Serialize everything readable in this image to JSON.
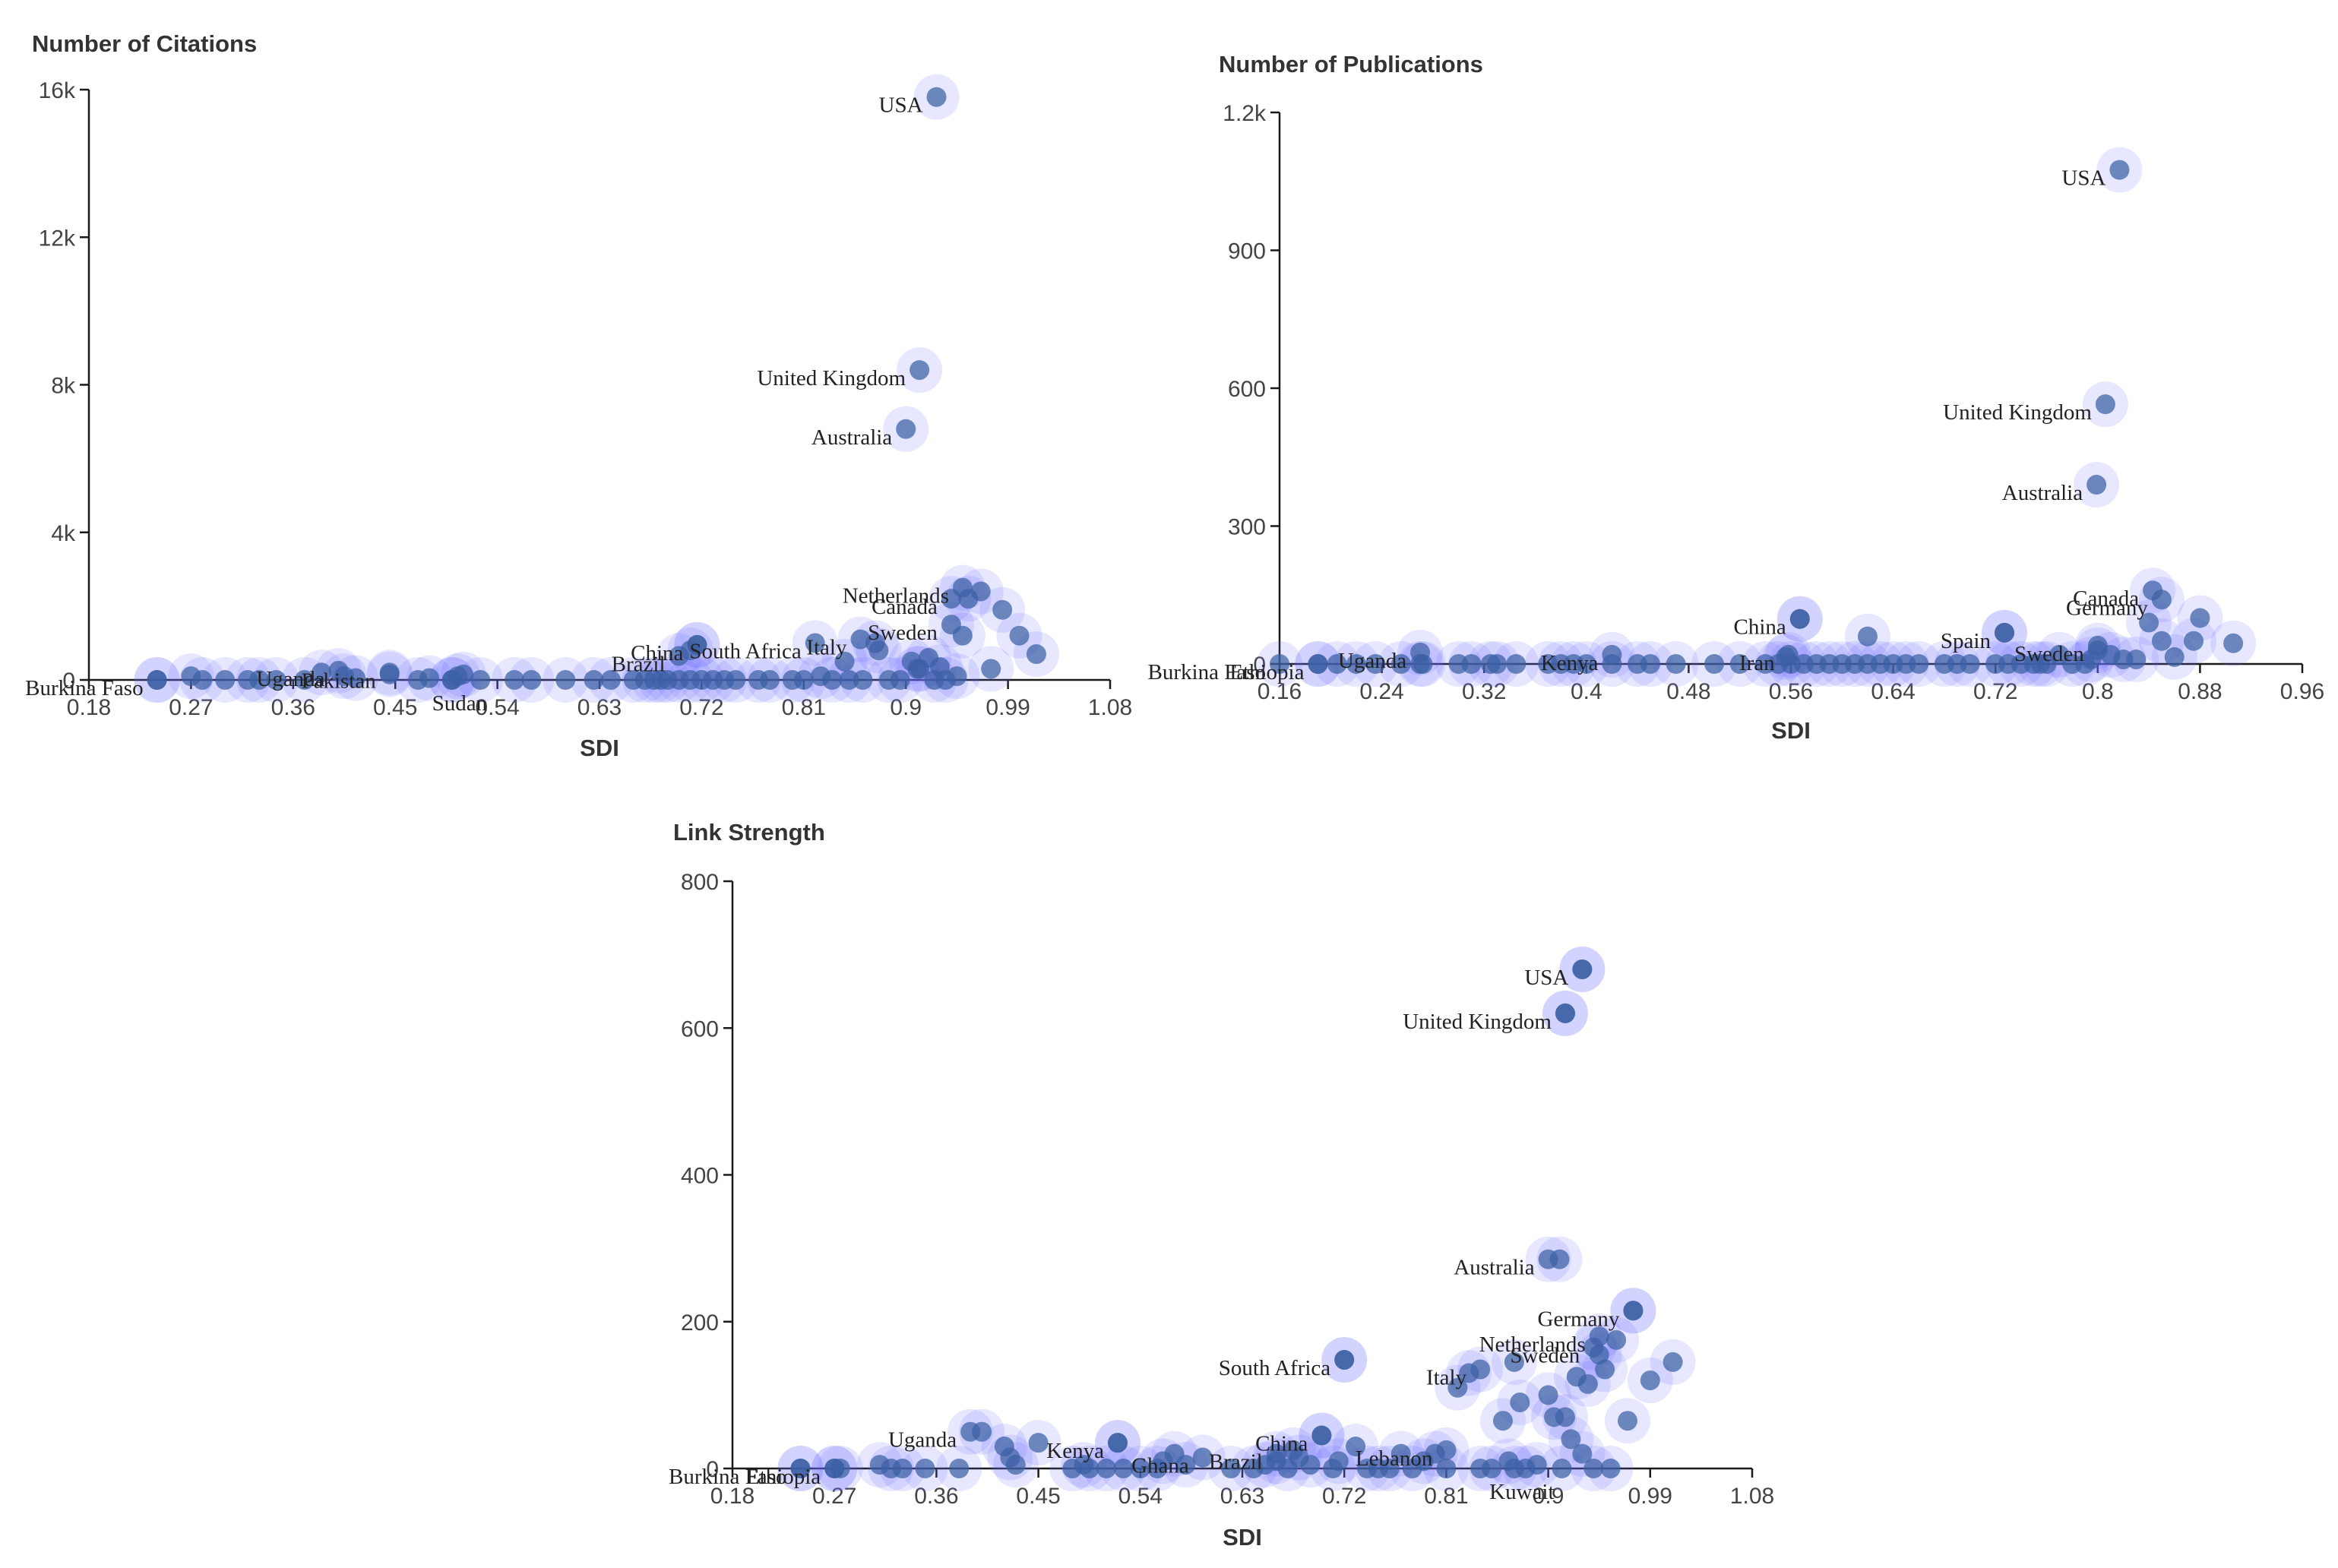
{
  "chart_data": [
    {
      "type": "scatter",
      "title": "Number of Citations",
      "xlabel": "SDI",
      "ylabel": "Number of Citations",
      "xlim": [
        0.18,
        1.08
      ],
      "ylim": [
        0,
        16000
      ],
      "xticks": [
        "0.18",
        "0.27",
        "0.36",
        "0.45",
        "0.54",
        "0.63",
        "0.72",
        "0.81",
        "0.9",
        "0.99",
        "1.08"
      ],
      "yticks": [
        {
          "value": 0,
          "label": "0"
        },
        {
          "value": 4000,
          "label": "4k"
        },
        {
          "value": 8000,
          "label": "8k"
        },
        {
          "value": 12000,
          "label": "12k"
        },
        {
          "value": 16000,
          "label": "16k"
        }
      ],
      "labeled_points": [
        {
          "label": "USA",
          "x": 0.927,
          "y": 15800
        },
        {
          "label": "United Kingdom",
          "x": 0.912,
          "y": 8400
        },
        {
          "label": "Australia",
          "x": 0.9,
          "y": 6800
        },
        {
          "label": "Netherlands",
          "x": 0.95,
          "y": 2500
        },
        {
          "label": "Canada",
          "x": 0.94,
          "y": 2200
        },
        {
          "label": "Sweden",
          "x": 0.94,
          "y": 1500
        },
        {
          "label": "Italy",
          "x": 0.86,
          "y": 1100
        },
        {
          "label": "South Africa",
          "x": 0.82,
          "y": 1000
        },
        {
          "label": "China",
          "x": 0.716,
          "y": 950
        },
        {
          "label": "Brazil",
          "x": 0.7,
          "y": 650
        },
        {
          "label": "Pakistan",
          "x": 0.445,
          "y": 200
        },
        {
          "label": "Uganda",
          "x": 0.4,
          "y": 250
        },
        {
          "label": "Burkina Faso",
          "x": 0.24,
          "y": 0
        },
        {
          "label": "Sudan",
          "x": 0.5,
          "y": 0
        }
      ],
      "points": [
        [
          0.24,
          0
        ],
        [
          0.27,
          100
        ],
        [
          0.28,
          0
        ],
        [
          0.3,
          0
        ],
        [
          0.32,
          0
        ],
        [
          0.33,
          0
        ],
        [
          0.345,
          0
        ],
        [
          0.37,
          0
        ],
        [
          0.385,
          200
        ],
        [
          0.405,
          100
        ],
        [
          0.415,
          50
        ],
        [
          0.445,
          150
        ],
        [
          0.47,
          0
        ],
        [
          0.48,
          50
        ],
        [
          0.5,
          0
        ],
        [
          0.505,
          100
        ],
        [
          0.51,
          150
        ],
        [
          0.525,
          0
        ],
        [
          0.555,
          0
        ],
        [
          0.57,
          0
        ],
        [
          0.6,
          0
        ],
        [
          0.625,
          0
        ],
        [
          0.64,
          0
        ],
        [
          0.66,
          0
        ],
        [
          0.67,
          0
        ],
        [
          0.678,
          0
        ],
        [
          0.684,
          0
        ],
        [
          0.69,
          0
        ],
        [
          0.7,
          0
        ],
        [
          0.71,
          0
        ],
        [
          0.72,
          0
        ],
        [
          0.73,
          0
        ],
        [
          0.74,
          0
        ],
        [
          0.75,
          0
        ],
        [
          0.77,
          0
        ],
        [
          0.78,
          0
        ],
        [
          0.8,
          0
        ],
        [
          0.81,
          0
        ],
        [
          0.825,
          100
        ],
        [
          0.835,
          0
        ],
        [
          0.846,
          500
        ],
        [
          0.85,
          0
        ],
        [
          0.862,
          0
        ],
        [
          0.873,
          1000
        ],
        [
          0.876,
          800
        ],
        [
          0.885,
          0
        ],
        [
          0.895,
          0
        ],
        [
          0.905,
          500
        ],
        [
          0.91,
          300
        ],
        [
          0.912,
          300
        ],
        [
          0.92,
          600
        ],
        [
          0.925,
          0
        ],
        [
          0.93,
          350
        ],
        [
          0.935,
          0
        ],
        [
          0.945,
          100
        ],
        [
          0.95,
          1200
        ],
        [
          0.955,
          2200
        ],
        [
          0.966,
          2400
        ],
        [
          0.975,
          300
        ],
        [
          0.985,
          1900
        ],
        [
          1.0,
          1200
        ],
        [
          1.015,
          700
        ],
        [
          0.716,
          950
        ],
        [
          0.71,
          800
        ]
      ]
    },
    {
      "type": "scatter",
      "title": "Number of Publications",
      "xlabel": "SDI",
      "ylabel": "Number of Publications",
      "xlim": [
        0.16,
        0.96
      ],
      "ylim": [
        0,
        1200
      ],
      "xticks": [
        "0.16",
        "0.24",
        "0.32",
        "0.4",
        "0.48",
        "0.56",
        "0.64",
        "0.72",
        "0.8",
        "0.88",
        "0.96"
      ],
      "yticks": [
        {
          "value": 0,
          "label": "0"
        },
        {
          "value": 300,
          "label": "300"
        },
        {
          "value": 600,
          "label": "600"
        },
        {
          "value": 900,
          "label": "900"
        },
        {
          "value": 1200,
          "label": "1.2k"
        }
      ],
      "labeled_points": [
        {
          "label": "USA",
          "x": 0.817,
          "y": 1075
        },
        {
          "label": "United Kingdom",
          "x": 0.806,
          "y": 565
        },
        {
          "label": "Australia",
          "x": 0.799,
          "y": 390
        },
        {
          "label": "Canada",
          "x": 0.843,
          "y": 160
        },
        {
          "label": "Germany",
          "x": 0.85,
          "y": 140
        },
        {
          "label": "Sweden",
          "x": 0.8,
          "y": 40
        },
        {
          "label": "Spain",
          "x": 0.727,
          "y": 68
        },
        {
          "label": "China",
          "x": 0.567,
          "y": 98
        },
        {
          "label": "Iran",
          "x": 0.558,
          "y": 20
        },
        {
          "label": "Kenya",
          "x": 0.42,
          "y": 20
        },
        {
          "label": "Uganda",
          "x": 0.27,
          "y": 25
        },
        {
          "label": "Ethiopia",
          "x": 0.19,
          "y": 0
        },
        {
          "label": "Burkina Faso",
          "x": 0.16,
          "y": 0
        }
      ],
      "points": [
        [
          0.19,
          0
        ],
        [
          0.205,
          0
        ],
        [
          0.22,
          0
        ],
        [
          0.235,
          0
        ],
        [
          0.255,
          0
        ],
        [
          0.27,
          0
        ],
        [
          0.272,
          0
        ],
        [
          0.3,
          0
        ],
        [
          0.31,
          0
        ],
        [
          0.325,
          0
        ],
        [
          0.33,
          0
        ],
        [
          0.345,
          0
        ],
        [
          0.37,
          0
        ],
        [
          0.38,
          0
        ],
        [
          0.39,
          0
        ],
        [
          0.4,
          0
        ],
        [
          0.42,
          0
        ],
        [
          0.44,
          0
        ],
        [
          0.45,
          0
        ],
        [
          0.47,
          0
        ],
        [
          0.5,
          0
        ],
        [
          0.52,
          0
        ],
        [
          0.54,
          0
        ],
        [
          0.55,
          0
        ],
        [
          0.556,
          15
        ],
        [
          0.56,
          0
        ],
        [
          0.57,
          0
        ],
        [
          0.58,
          0
        ],
        [
          0.59,
          0
        ],
        [
          0.6,
          0
        ],
        [
          0.61,
          0
        ],
        [
          0.62,
          0
        ],
        [
          0.63,
          0
        ],
        [
          0.64,
          0
        ],
        [
          0.65,
          0
        ],
        [
          0.66,
          0
        ],
        [
          0.68,
          0
        ],
        [
          0.69,
          0
        ],
        [
          0.7,
          0
        ],
        [
          0.72,
          0
        ],
        [
          0.73,
          0
        ],
        [
          0.74,
          0
        ],
        [
          0.75,
          0
        ],
        [
          0.755,
          0
        ],
        [
          0.76,
          0
        ],
        [
          0.77,
          20
        ],
        [
          0.78,
          0
        ],
        [
          0.79,
          0
        ],
        [
          0.795,
          10
        ],
        [
          0.8,
          30
        ],
        [
          0.81,
          20
        ],
        [
          0.82,
          10
        ],
        [
          0.83,
          10
        ],
        [
          0.84,
          90
        ],
        [
          0.85,
          50
        ],
        [
          0.86,
          15
        ],
        [
          0.875,
          50
        ],
        [
          0.88,
          100
        ],
        [
          0.906,
          45
        ],
        [
          0.567,
          98
        ],
        [
          0.727,
          68
        ],
        [
          0.62,
          60
        ]
      ]
    },
    {
      "type": "scatter",
      "title": "Link Strength",
      "xlabel": "SDI",
      "ylabel": "Link Strength",
      "xlim": [
        0.18,
        1.08
      ],
      "ylim": [
        0,
        800
      ],
      "xticks": [
        "0.18",
        "0.27",
        "0.36",
        "0.45",
        "0.54",
        "0.63",
        "0.72",
        "0.81",
        "0.9",
        "0.99",
        "1.08"
      ],
      "yticks": [
        {
          "value": 0,
          "label": "0"
        },
        {
          "value": 200,
          "label": "200"
        },
        {
          "value": 400,
          "label": "400"
        },
        {
          "value": 600,
          "label": "600"
        },
        {
          "value": 800,
          "label": "800"
        }
      ],
      "labeled_points": [
        {
          "label": "USA",
          "x": 0.93,
          "y": 680
        },
        {
          "label": "United Kingdom",
          "x": 0.915,
          "y": 620
        },
        {
          "label": "Australia",
          "x": 0.9,
          "y": 285
        },
        {
          "label": "Germany",
          "x": 0.975,
          "y": 215
        },
        {
          "label": "Netherlands",
          "x": 0.945,
          "y": 180
        },
        {
          "label": "Sweden",
          "x": 0.94,
          "y": 165
        },
        {
          "label": "Italy",
          "x": 0.84,
          "y": 135
        },
        {
          "label": "South Africa",
          "x": 0.72,
          "y": 148
        },
        {
          "label": "China",
          "x": 0.7,
          "y": 45
        },
        {
          "label": "Lebanon",
          "x": 0.81,
          "y": 25
        },
        {
          "label": "Brazil",
          "x": 0.66,
          "y": 20
        },
        {
          "label": "Ghana",
          "x": 0.595,
          "y": 15
        },
        {
          "label": "Kenya",
          "x": 0.52,
          "y": 35
        },
        {
          "label": "Uganda",
          "x": 0.39,
          "y": 50
        },
        {
          "label": "Ethiopia",
          "x": 0.27,
          "y": 0
        },
        {
          "label": "Burkina Faso",
          "x": 0.24,
          "y": 0
        },
        {
          "label": "Kuwait",
          "x": 0.87,
          "y": 0
        }
      ],
      "points": [
        [
          0.24,
          0
        ],
        [
          0.27,
          0
        ],
        [
          0.275,
          0
        ],
        [
          0.31,
          5
        ],
        [
          0.32,
          0
        ],
        [
          0.33,
          0
        ],
        [
          0.35,
          0
        ],
        [
          0.38,
          0
        ],
        [
          0.4,
          50
        ],
        [
          0.42,
          30
        ],
        [
          0.425,
          15
        ],
        [
          0.43,
          5
        ],
        [
          0.45,
          35
        ],
        [
          0.48,
          0
        ],
        [
          0.49,
          5
        ],
        [
          0.495,
          0
        ],
        [
          0.51,
          0
        ],
        [
          0.52,
          35
        ],
        [
          0.525,
          0
        ],
        [
          0.54,
          0
        ],
        [
          0.555,
          0
        ],
        [
          0.56,
          10
        ],
        [
          0.57,
          20
        ],
        [
          0.58,
          5
        ],
        [
          0.62,
          0
        ],
        [
          0.64,
          0
        ],
        [
          0.65,
          5
        ],
        [
          0.66,
          10
        ],
        [
          0.67,
          0
        ],
        [
          0.675,
          25
        ],
        [
          0.68,
          15
        ],
        [
          0.69,
          5
        ],
        [
          0.7,
          45
        ],
        [
          0.71,
          0
        ],
        [
          0.715,
          10
        ],
        [
          0.72,
          148
        ],
        [
          0.73,
          30
        ],
        [
          0.74,
          0
        ],
        [
          0.75,
          0
        ],
        [
          0.76,
          0
        ],
        [
          0.77,
          20
        ],
        [
          0.78,
          0
        ],
        [
          0.79,
          10
        ],
        [
          0.8,
          20
        ],
        [
          0.81,
          0
        ],
        [
          0.82,
          110
        ],
        [
          0.83,
          130
        ],
        [
          0.84,
          0
        ],
        [
          0.85,
          0
        ],
        [
          0.86,
          65
        ],
        [
          0.865,
          10
        ],
        [
          0.87,
          145
        ],
        [
          0.875,
          90
        ],
        [
          0.88,
          0
        ],
        [
          0.89,
          5
        ],
        [
          0.9,
          100
        ],
        [
          0.905,
          70
        ],
        [
          0.91,
          285
        ],
        [
          0.912,
          0
        ],
        [
          0.915,
          70
        ],
        [
          0.92,
          40
        ],
        [
          0.925,
          125
        ],
        [
          0.93,
          20
        ],
        [
          0.935,
          115
        ],
        [
          0.94,
          0
        ],
        [
          0.945,
          155
        ],
        [
          0.95,
          135
        ],
        [
          0.955,
          0
        ],
        [
          0.96,
          175
        ],
        [
          0.97,
          65
        ],
        [
          0.975,
          215
        ],
        [
          0.99,
          120
        ],
        [
          1.01,
          145
        ],
        [
          0.93,
          680
        ],
        [
          0.915,
          620
        ]
      ]
    }
  ]
}
